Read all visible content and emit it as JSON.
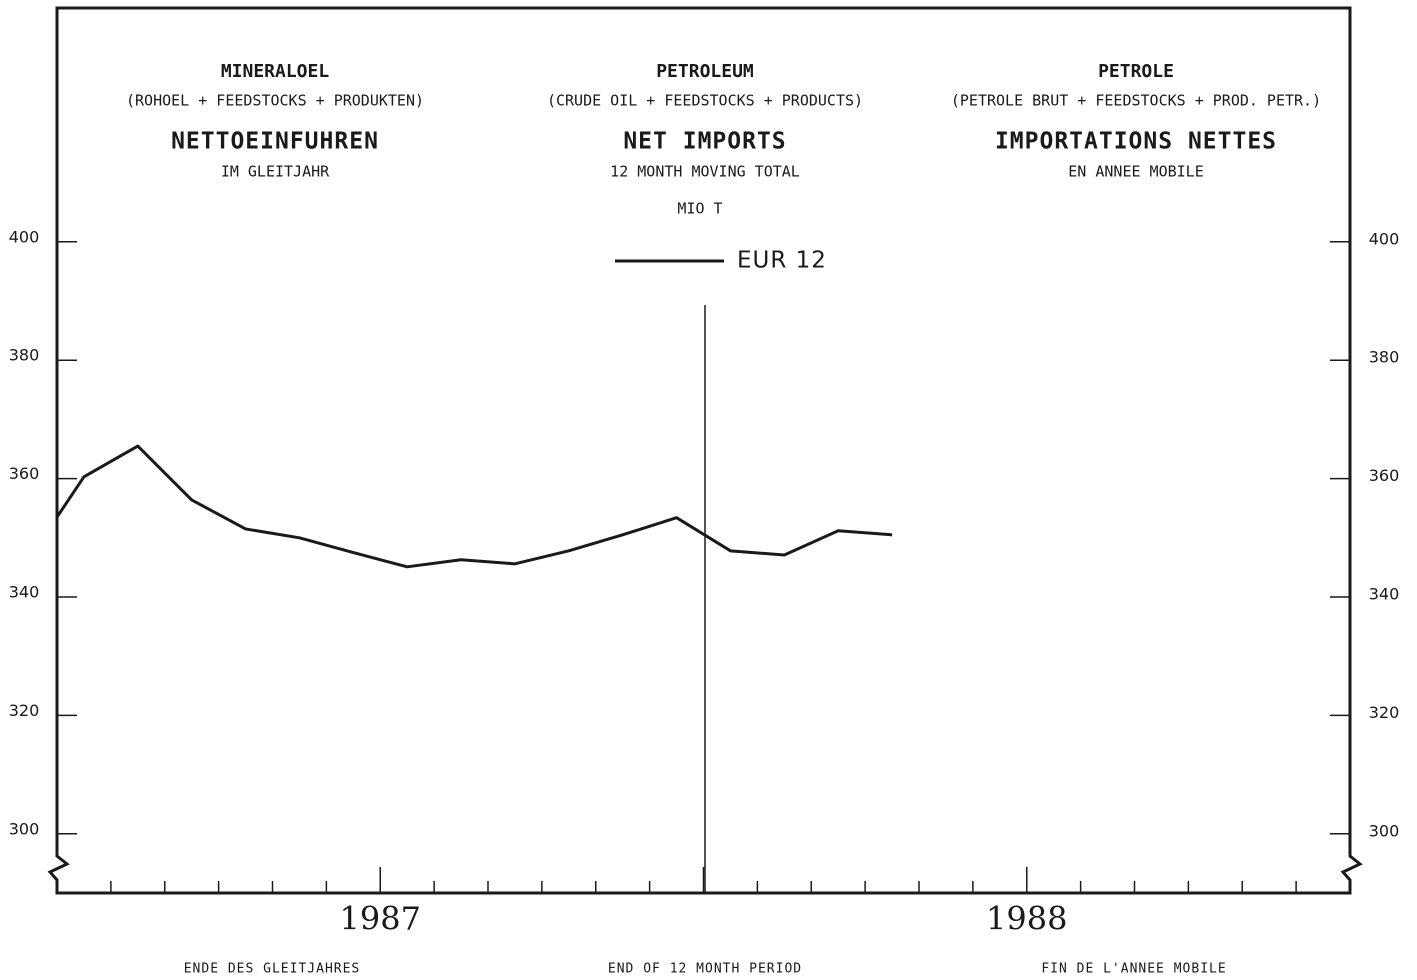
{
  "chart_data": {
    "type": "line",
    "headings": [
      {
        "title": "MINERALOEL",
        "subtitle": "(ROHOEL + FEEDSTOCKS + PRODUKTEN)",
        "heading": "NETTOEINFUHREN",
        "subheading": "IM GLEITJAHR"
      },
      {
        "title": "PETROLEUM",
        "subtitle": "(CRUDE OIL + FEEDSTOCKS + PRODUCTS)",
        "heading": "NET IMPORTS",
        "subheading": "12 MONTH MOVING TOTAL"
      },
      {
        "title": "PETROLE",
        "subtitle": "(PETROLE BRUT + FEEDSTOCKS + PROD. PETR.)",
        "heading": "IMPORTATIONS NETTES",
        "subheading": "EN ANNEE MOBILE"
      }
    ],
    "unit": "MIO T",
    "x": [
      0,
      0.5,
      1.5,
      2.5,
      3.5,
      4.5,
      5.5,
      6.5,
      7.5,
      8.5,
      9.5,
      10.5,
      11.5,
      12.5,
      13.5,
      14.5,
      15.5
    ],
    "series": [
      {
        "name": "EUR 12",
        "color": "#1a1a1a",
        "values": [
          353.5,
          360.3,
          365.5,
          356.4,
          351.5,
          350.0,
          347.5,
          345.1,
          346.3,
          345.6,
          347.8,
          350.5,
          353.4,
          347.8,
          347.1,
          351.2,
          350.5
        ]
      }
    ],
    "xlim": [
      0,
      24
    ],
    "xticks": [
      {
        "value": 6,
        "label": "1987"
      },
      {
        "value": 18,
        "label": "1988"
      }
    ],
    "ylim": [
      290,
      440
    ],
    "yticks": [
      300,
      320,
      340,
      360,
      380,
      400
    ],
    "footers": [
      "ENDE DES GLEITJAHRES",
      "END OF 12 MONTH PERIOD",
      "FIN DE L'ANNEE MOBILE"
    ]
  }
}
